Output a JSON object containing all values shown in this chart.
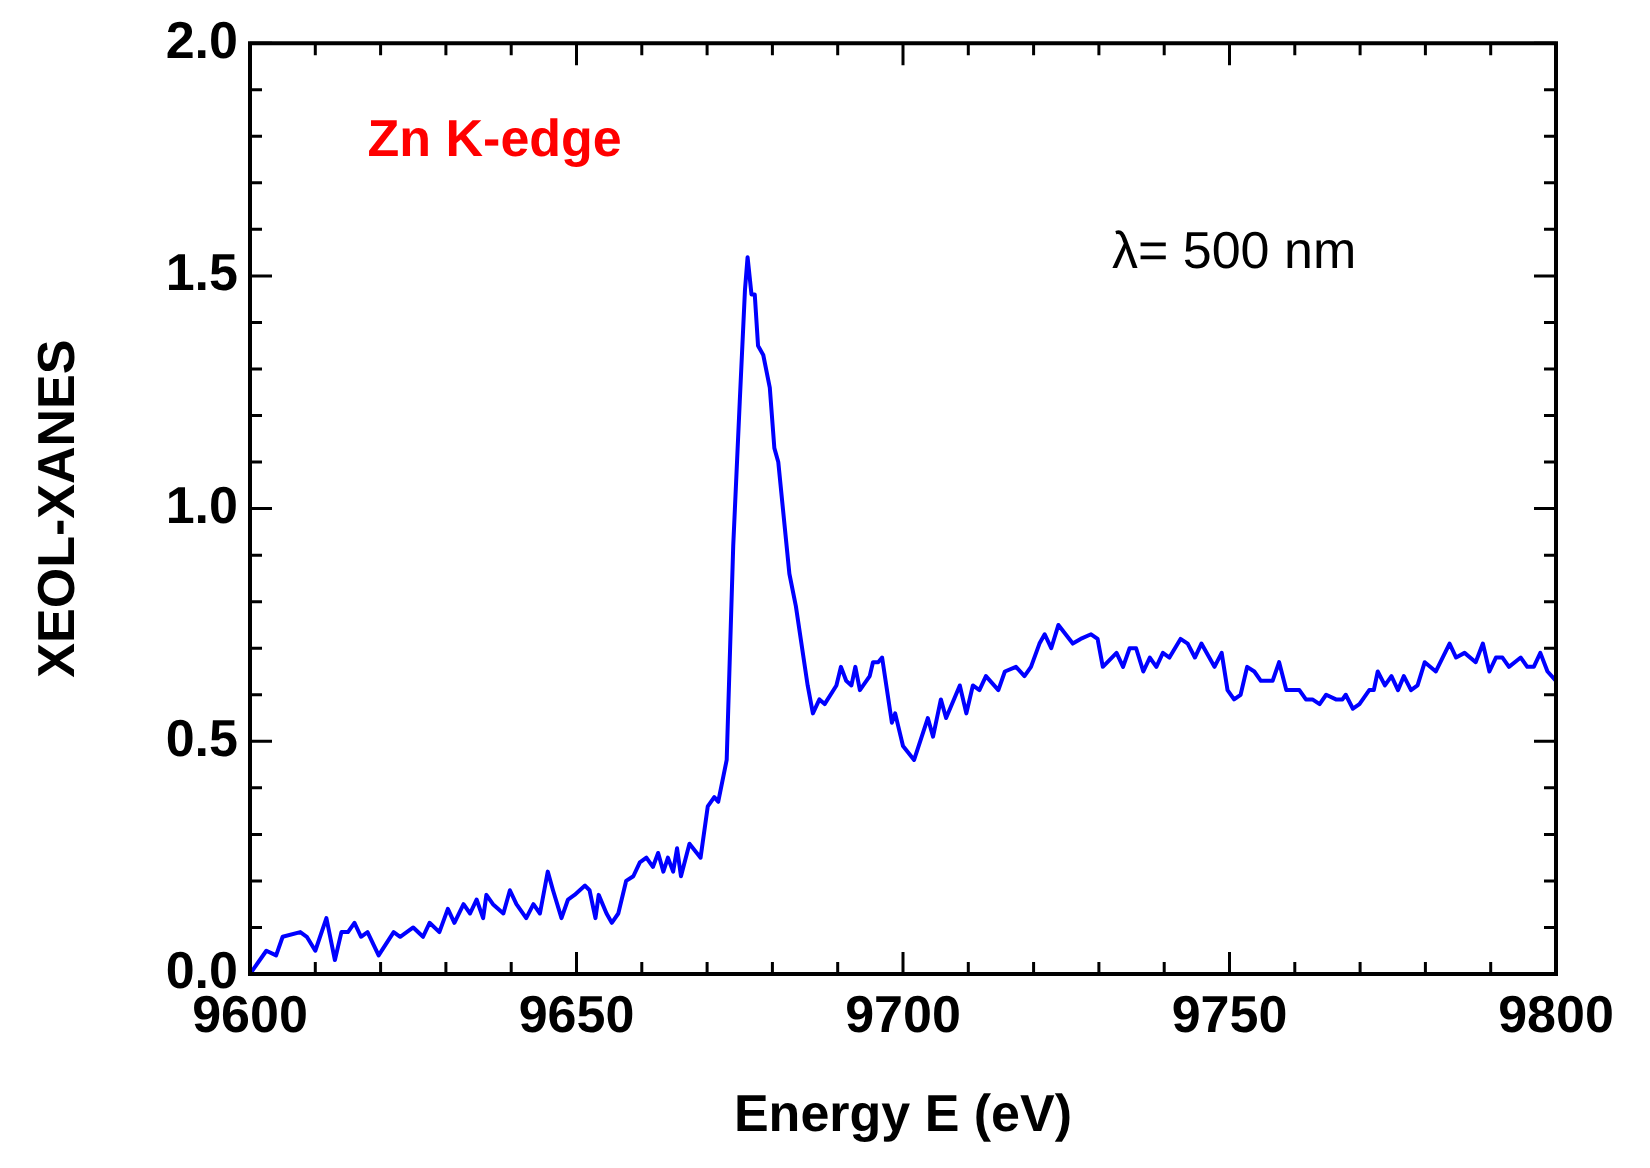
{
  "chart_data": {
    "type": "line",
    "xlabel": "Energy E (eV)",
    "ylabel": "XEOL-XANES",
    "annotations": [
      "Zn K-edge",
      "λ= 500 nm"
    ],
    "xlim": [
      9600,
      9800
    ],
    "ylim": [
      0,
      2
    ],
    "xticks": [
      9600,
      {
        "value": 9610,
        "label": null
      },
      {
        "value": 9620,
        "label": null
      },
      {
        "value": 9630,
        "label": null
      },
      {
        "value": 9640,
        "label": null
      },
      9650,
      {
        "value": 9660,
        "label": null
      },
      {
        "value": 9670,
        "label": null
      },
      {
        "value": 9680,
        "label": null
      },
      {
        "value": 9690,
        "label": null
      },
      9700,
      {
        "value": 9710,
        "label": null
      },
      {
        "value": 9720,
        "label": null
      },
      {
        "value": 9730,
        "label": null
      },
      {
        "value": 9740,
        "label": null
      },
      9750,
      {
        "value": 9760,
        "label": null
      },
      {
        "value": 9770,
        "label": null
      },
      {
        "value": 9780,
        "label": null
      },
      {
        "value": 9790,
        "label": null
      },
      9800
    ],
    "yticks": [
      {
        "value": 0,
        "label": "0.0"
      },
      {
        "value": 0.1,
        "label": null
      },
      {
        "value": 0.2,
        "label": null
      },
      {
        "value": 0.3,
        "label": null
      },
      {
        "value": 0.4,
        "label": null
      },
      0.5,
      {
        "value": 0.6,
        "label": null
      },
      {
        "value": 0.7,
        "label": null
      },
      {
        "value": 0.8,
        "label": null
      },
      {
        "value": 0.9,
        "label": null
      },
      {
        "value": 1,
        "label": "1.0"
      },
      {
        "value": 1.1,
        "label": null
      },
      {
        "value": 1.2,
        "label": null
      },
      {
        "value": 1.3,
        "label": null
      },
      {
        "value": 1.4,
        "label": null
      },
      1.5,
      {
        "value": 1.6,
        "label": null
      },
      {
        "value": 1.7,
        "label": null
      },
      {
        "value": 1.8,
        "label": null
      },
      {
        "value": 1.9,
        "label": null
      },
      {
        "value": 2,
        "label": "2.0"
      }
    ],
    "grid": false,
    "marker": "none",
    "line_style": "solid",
    "series": [
      {
        "color": "#0000ff",
        "x": [
          9600,
          9602.5,
          9604,
          9605,
          9607.7,
          9608.7,
          9610,
          9611.7,
          9613,
          9614,
          9615,
          9616,
          9617,
          9618,
          9619.7,
          9622,
          9623,
          9625,
          9626.5,
          9627.5,
          9629,
          9630.3,
          9631.3,
          9632.7,
          9633.7,
          9634.7,
          9635.7,
          9636.2,
          9637.2,
          9638.8,
          9639.8,
          9640.8,
          9642.3,
          9643.4,
          9644.4,
          9645.6,
          9646.4,
          9647.7,
          9648.7,
          9649.7,
          9651.3,
          9652,
          9652.9,
          9653.4,
          9654.6,
          9655.4,
          9656.4,
          9657.6,
          9658.7,
          9659.7,
          9660.7,
          9661.7,
          9662.5,
          9663.3,
          9664,
          9664.8,
          9665.4,
          9666,
          9667.3,
          9669,
          9670.1,
          9671.1,
          9671.7,
          9673,
          9674,
          9675,
          9675.8,
          9676.2,
          9676.8,
          9677.3,
          9677.8,
          9678.6,
          9679.6,
          9680.3,
          9680.9,
          9682.6,
          9683.6,
          9685.4,
          9686.2,
          9687.2,
          9688,
          9689.8,
          9690.5,
          9691.3,
          9692.1,
          9692.7,
          9693.4,
          9694.9,
          9695.4,
          9696.2,
          9696.8,
          9698.3,
          9698.8,
          9700,
          9701.7,
          9703.8,
          9704.6,
          9705.8,
          9706.6,
          9708.7,
          9709.7,
          9710.7,
          9711.7,
          9712.7,
          9714.6,
          9715.6,
          9717.3,
          9718.6,
          9719.6,
          9720.9,
          9721.7,
          9722.7,
          9723.8,
          9726,
          9727.2,
          9728.8,
          9729.8,
          9730.6,
          9732.7,
          9733.7,
          9734.7,
          9735.7,
          9736.8,
          9737.8,
          9738.8,
          9739.8,
          9740.8,
          9742.5,
          9743.6,
          9744.7,
          9745.7,
          9747.7,
          9748.8,
          9749.7,
          9750.7,
          9751.7,
          9752.7,
          9753.8,
          9754.8,
          9755.8,
          9756.6,
          9757.6,
          9758.7,
          9760.7,
          9761.7,
          9762.7,
          9763.8,
          9764.8,
          9766.3,
          9767.3,
          9767.8,
          9768.9,
          9769.9,
          9771.4,
          9772.1,
          9772.7,
          9773.8,
          9774.8,
          9775.8,
          9776.7,
          9777.8,
          9778.8,
          9779.9,
          9781.6,
          9783.7,
          9784.7,
          9786,
          9787.7,
          9788.8,
          9789.8,
          9790.8,
          9791.8,
          9792.8,
          9794.6,
          9795.6,
          9796.6,
          9797.6,
          9798.7,
          9800
        ],
        "values": [
          0,
          0.05,
          0.04,
          0.08,
          0.09,
          0.08,
          0.05,
          0.12,
          0.03,
          0.09,
          0.09,
          0.11,
          0.08,
          0.09,
          0.04,
          0.09,
          0.08,
          0.1,
          0.08,
          0.11,
          0.09,
          0.14,
          0.11,
          0.15,
          0.13,
          0.16,
          0.12,
          0.17,
          0.15,
          0.13,
          0.18,
          0.15,
          0.12,
          0.15,
          0.13,
          0.22,
          0.18,
          0.12,
          0.16,
          0.17,
          0.19,
          0.18,
          0.12,
          0.17,
          0.13,
          0.11,
          0.13,
          0.2,
          0.21,
          0.24,
          0.25,
          0.23,
          0.26,
          0.22,
          0.25,
          0.22,
          0.27,
          0.21,
          0.28,
          0.25,
          0.36,
          0.38,
          0.37,
          0.46,
          0.92,
          1.23,
          1.47,
          1.54,
          1.46,
          1.46,
          1.35,
          1.33,
          1.26,
          1.13,
          1.1,
          0.86,
          0.79,
          0.62,
          0.56,
          0.59,
          0.58,
          0.62,
          0.66,
          0.63,
          0.62,
          0.66,
          0.61,
          0.64,
          0.67,
          0.67,
          0.68,
          0.54,
          0.56,
          0.49,
          0.46,
          0.55,
          0.51,
          0.59,
          0.55,
          0.62,
          0.56,
          0.62,
          0.61,
          0.64,
          0.61,
          0.65,
          0.66,
          0.64,
          0.66,
          0.71,
          0.73,
          0.7,
          0.75,
          0.71,
          0.72,
          0.73,
          0.72,
          0.66,
          0.69,
          0.66,
          0.7,
          0.7,
          0.65,
          0.68,
          0.66,
          0.69,
          0.68,
          0.72,
          0.71,
          0.68,
          0.71,
          0.66,
          0.69,
          0.61,
          0.59,
          0.6,
          0.66,
          0.65,
          0.63,
          0.63,
          0.63,
          0.67,
          0.61,
          0.61,
          0.59,
          0.59,
          0.58,
          0.6,
          0.59,
          0.59,
          0.6,
          0.57,
          0.58,
          0.61,
          0.61,
          0.65,
          0.62,
          0.64,
          0.61,
          0.64,
          0.61,
          0.62,
          0.67,
          0.65,
          0.71,
          0.68,
          0.69,
          0.67,
          0.71,
          0.65,
          0.68,
          0.68,
          0.66,
          0.68,
          0.66,
          0.66,
          0.69,
          0.65,
          0.63
        ]
      }
    ]
  }
}
